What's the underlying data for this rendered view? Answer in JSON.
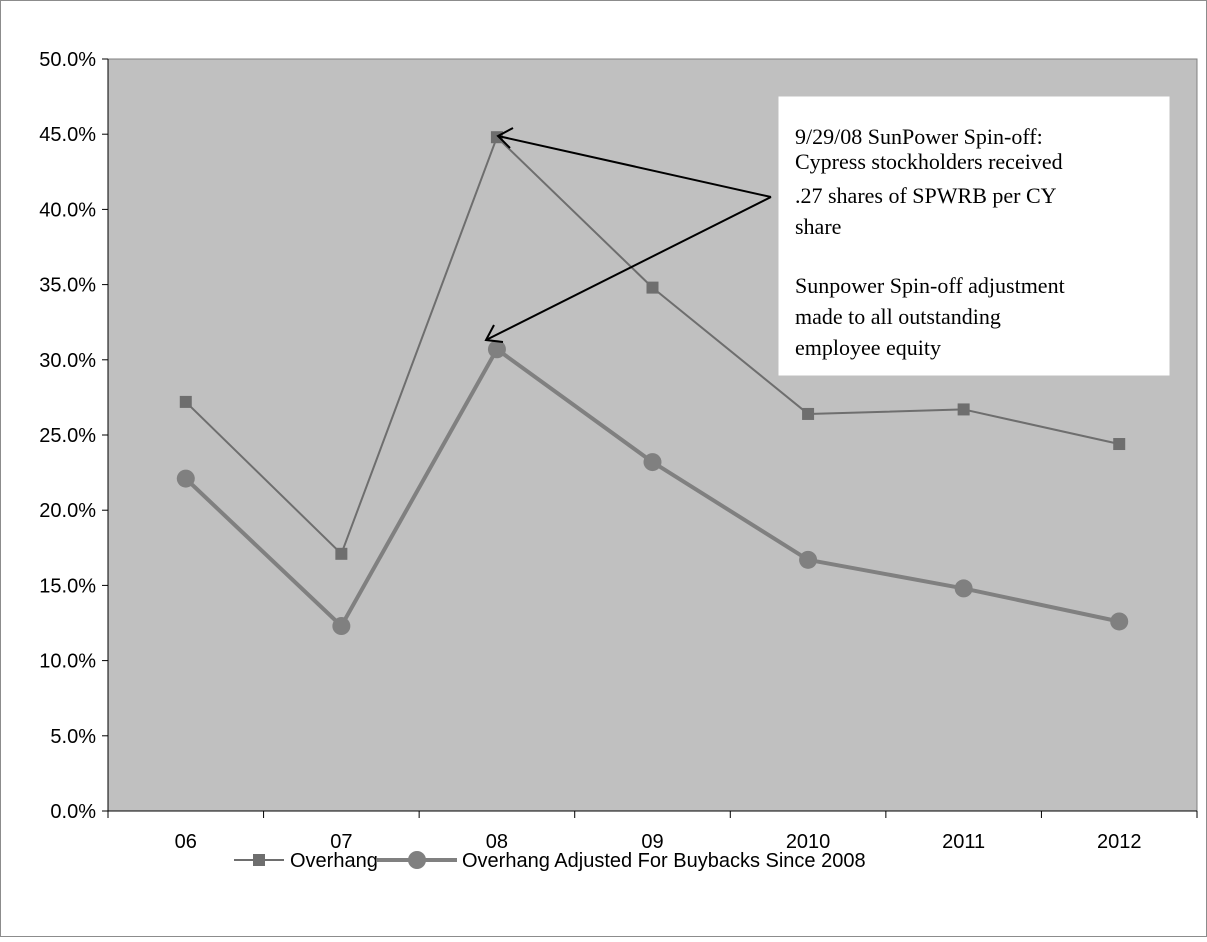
{
  "chart_data": {
    "type": "line",
    "categories": [
      "06",
      "07",
      "08",
      "09",
      "2010",
      "2011",
      "2012"
    ],
    "series": [
      {
        "name": "Overhang",
        "values": [
          27.2,
          17.1,
          44.8,
          34.8,
          26.4,
          26.7,
          24.4
        ],
        "color": "#6e6e6e",
        "marker": "square"
      },
      {
        "name": "Overhang Adjusted For Buybacks Since 2008",
        "values": [
          22.1,
          12.3,
          30.7,
          23.2,
          16.7,
          14.8,
          12.6
        ],
        "color": "#808080",
        "marker": "circle"
      }
    ],
    "ylim": [
      0,
      50
    ],
    "yticks": [
      "0.0%",
      "5.0%",
      "10.0%",
      "15.0%",
      "20.0%",
      "25.0%",
      "30.0%",
      "35.0%",
      "40.0%",
      "45.0%",
      "50.0%"
    ],
    "title": "",
    "xlabel": "",
    "ylabel": "",
    "grid": false,
    "legend_position": "bottom",
    "plot_background": "#c0c0c0",
    "annotation": {
      "lines": [
        "9/29/08 SunPower Spin-off:",
        "Cypress stockholders received",
        ".27 shares of SPWRB per CY",
        "share",
        "",
        "Sunpower Spin-off adjustment",
        "made to all outstanding",
        "employee equity"
      ],
      "points_to_category": "08"
    }
  }
}
